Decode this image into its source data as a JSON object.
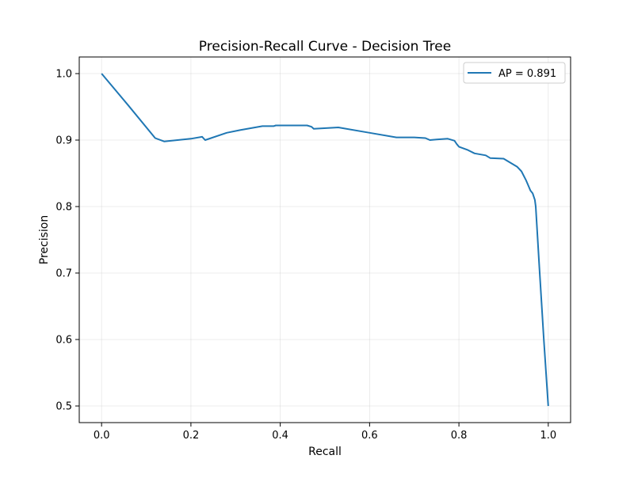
{
  "chart_data": {
    "type": "line",
    "title": "Precision-Recall Curve - Decision Tree",
    "xlabel": "Recall",
    "ylabel": "Precision",
    "xlim": [
      -0.05,
      1.05
    ],
    "ylim": [
      0.475,
      1.025
    ],
    "x_ticks": [
      0.0,
      0.2,
      0.4,
      0.6,
      0.8,
      1.0
    ],
    "y_ticks": [
      0.5,
      0.6,
      0.7,
      0.8,
      0.9,
      1.0
    ],
    "x_tick_labels": [
      "0.0",
      "0.2",
      "0.4",
      "0.6",
      "0.8",
      "1.0"
    ],
    "y_tick_labels": [
      "0.5",
      "0.6",
      "0.7",
      "0.8",
      "0.9",
      "1.0"
    ],
    "grid": true,
    "legend_position": "top-right",
    "series": [
      {
        "name": "AP = 0.891",
        "color": "#1f77b4",
        "points": [
          [
            0.0,
            1.0
          ],
          [
            0.06,
            0.952
          ],
          [
            0.12,
            0.903
          ],
          [
            0.14,
            0.898
          ],
          [
            0.2,
            0.902
          ],
          [
            0.225,
            0.905
          ],
          [
            0.232,
            0.9
          ],
          [
            0.28,
            0.911
          ],
          [
            0.31,
            0.915
          ],
          [
            0.36,
            0.921
          ],
          [
            0.385,
            0.921
          ],
          [
            0.39,
            0.922
          ],
          [
            0.46,
            0.922
          ],
          [
            0.47,
            0.92
          ],
          [
            0.475,
            0.917
          ],
          [
            0.53,
            0.919
          ],
          [
            0.6,
            0.911
          ],
          [
            0.66,
            0.904
          ],
          [
            0.7,
            0.904
          ],
          [
            0.725,
            0.903
          ],
          [
            0.735,
            0.9
          ],
          [
            0.75,
            0.901
          ],
          [
            0.775,
            0.902
          ],
          [
            0.79,
            0.899
          ],
          [
            0.795,
            0.894
          ],
          [
            0.8,
            0.89
          ],
          [
            0.82,
            0.885
          ],
          [
            0.835,
            0.88
          ],
          [
            0.86,
            0.877
          ],
          [
            0.87,
            0.873
          ],
          [
            0.9,
            0.872
          ],
          [
            0.91,
            0.868
          ],
          [
            0.93,
            0.86
          ],
          [
            0.94,
            0.853
          ],
          [
            0.95,
            0.84
          ],
          [
            0.955,
            0.832
          ],
          [
            0.96,
            0.824
          ],
          [
            0.965,
            0.82
          ],
          [
            0.97,
            0.81
          ],
          [
            0.972,
            0.8
          ],
          [
            0.98,
            0.71
          ],
          [
            0.99,
            0.6
          ],
          [
            1.0,
            0.5
          ]
        ]
      }
    ]
  }
}
